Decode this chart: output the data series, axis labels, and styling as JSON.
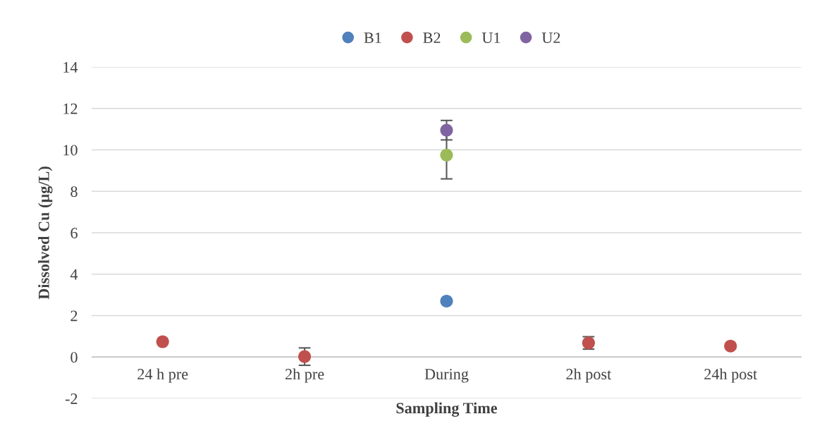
{
  "chart_data": {
    "type": "scatter",
    "xlabel": "Sampling Time",
    "ylabel": "Dissolved Cu (µg/L)",
    "categories": [
      "24 h pre",
      "2h pre",
      "During",
      "2h post",
      "24h post"
    ],
    "series": [
      {
        "name": "B1",
        "color": "#4f81bd",
        "values": [
          null,
          null,
          2.7,
          null,
          null
        ]
      },
      {
        "name": "B2",
        "color": "#c0504d",
        "values": [
          0.74,
          0.02,
          null,
          0.68,
          0.53
        ],
        "errors": [
          null,
          0.42,
          null,
          0.3,
          null
        ]
      },
      {
        "name": "U1",
        "color": "#9bbb59",
        "values": [
          null,
          null,
          9.75,
          null,
          null
        ],
        "errors": [
          null,
          null,
          1.15,
          null,
          null
        ]
      },
      {
        "name": "U2",
        "color": "#8064a2",
        "values": [
          null,
          null,
          10.95,
          null,
          null
        ],
        "errors": [
          null,
          null,
          0.47,
          null,
          null
        ]
      }
    ],
    "ylim": [
      -2,
      14
    ],
    "yticks": [
      -2,
      0,
      2,
      4,
      6,
      8,
      10,
      12,
      14
    ],
    "grid": "y",
    "legend": "top",
    "marker": "circle"
  }
}
